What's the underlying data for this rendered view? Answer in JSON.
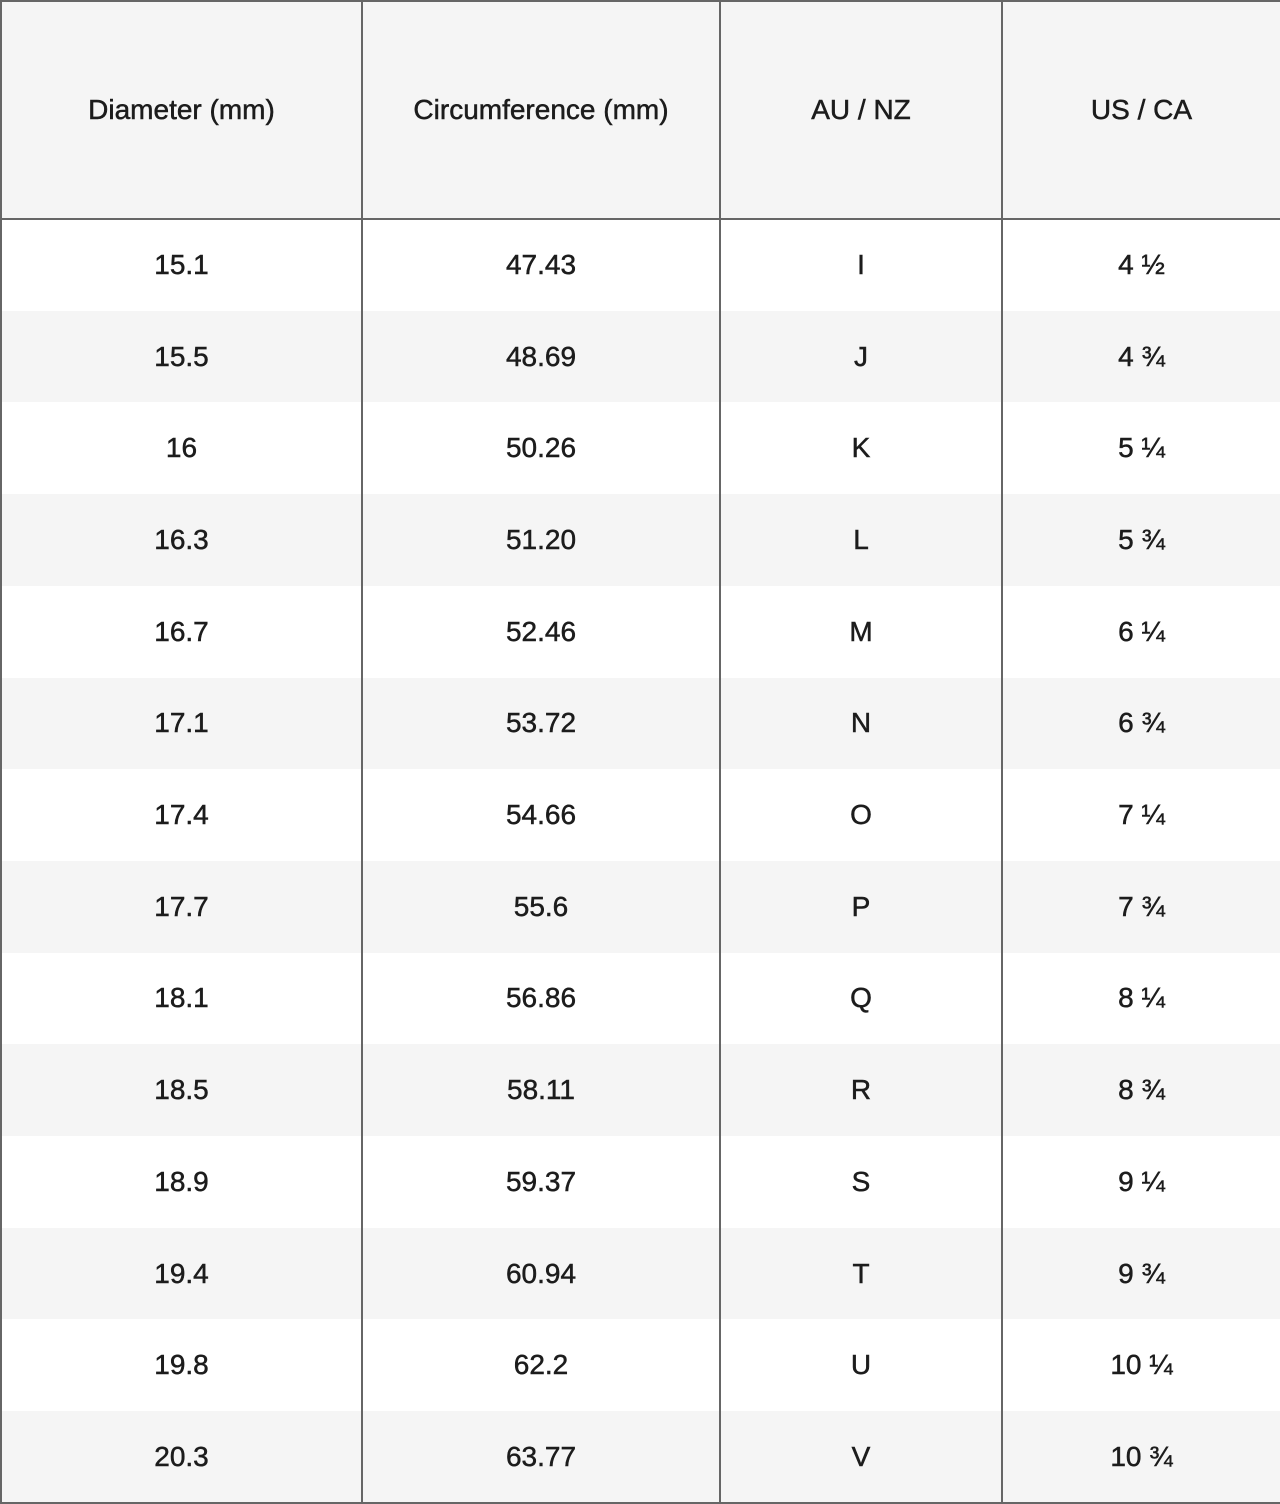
{
  "table": {
    "headers": [
      "Diameter (mm)",
      "Circumference (mm)",
      "AU / NZ",
      "US / CA"
    ],
    "rows": [
      [
        "15.1",
        "47.43",
        "I",
        "4 ½"
      ],
      [
        "15.5",
        "48.69",
        "J",
        "4 ¾"
      ],
      [
        "16",
        "50.26",
        "K",
        "5 ¼"
      ],
      [
        "16.3",
        "51.20",
        "L",
        "5 ¾"
      ],
      [
        "16.7",
        "52.46",
        "M",
        "6 ¼"
      ],
      [
        "17.1",
        "53.72",
        "N",
        "6 ¾"
      ],
      [
        "17.4",
        "54.66",
        "O",
        "7 ¼"
      ],
      [
        "17.7",
        "55.6",
        "P",
        "7 ¾"
      ],
      [
        "18.1",
        "56.86",
        "Q",
        "8 ¼"
      ],
      [
        "18.5",
        "58.11",
        "R",
        "8 ¾"
      ],
      [
        "18.9",
        "59.37",
        "S",
        "9 ¼"
      ],
      [
        "19.4",
        "60.94",
        "T",
        "9 ¾"
      ],
      [
        "19.8",
        "62.2",
        "U",
        "10 ¼"
      ],
      [
        "20.3",
        "63.77",
        "V",
        "10 ¾"
      ]
    ]
  }
}
